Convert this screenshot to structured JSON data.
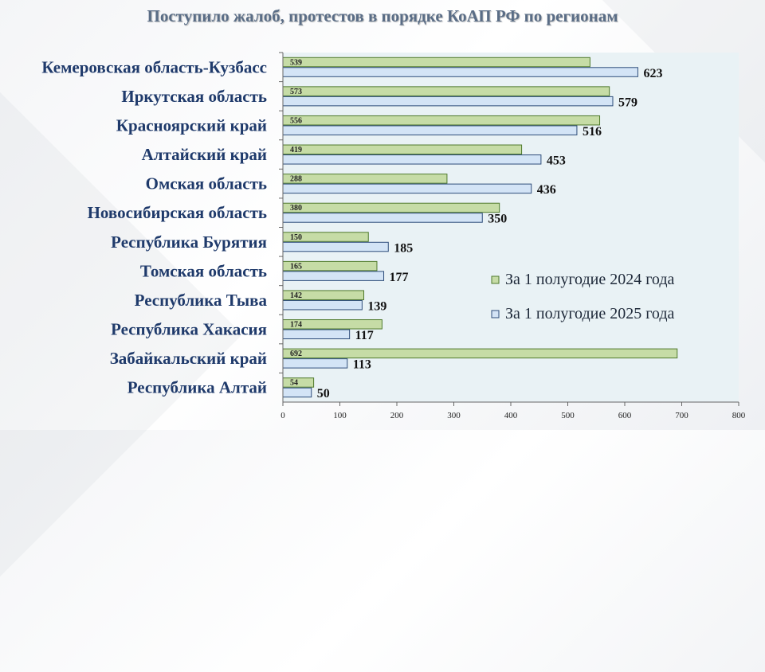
{
  "chart_data": {
    "type": "bar",
    "orientation": "horizontal",
    "title": "Поступило жалоб, протестов в порядке КоАП РФ по регионам",
    "categories": [
      "Кемеровская область-Кузбасс",
      "Иркутская область",
      "Красноярский край",
      "Алтайский край",
      "Омская область",
      "Новосибирская область",
      "Республика Бурятия",
      "Томская область",
      "Республика Тыва",
      "Республика Хакасия",
      "Забайкальский край",
      "Республика Алтай"
    ],
    "series": [
      {
        "name": "За 1 полугодие 2024 года",
        "color": "#c6dca6",
        "stroke": "#4f7a2c",
        "values": [
          539,
          573,
          556,
          419,
          288,
          380,
          150,
          165,
          142,
          174,
          692,
          54
        ]
      },
      {
        "name": "За 1 полугодие 2025 года",
        "color": "#d3e4f6",
        "stroke": "#2e4d7a",
        "values": [
          623,
          579,
          516,
          453,
          436,
          350,
          185,
          177,
          139,
          117,
          113,
          50
        ]
      }
    ],
    "xlim": [
      0,
      800
    ],
    "xticks": [
      0,
      100,
      200,
      300,
      400,
      500,
      600,
      700,
      800
    ],
    "grid": false,
    "legend_position": "right"
  },
  "colors": {
    "title": "#5a6d86",
    "category_text": "#1f3a6b",
    "plot_background": "#e9f2f5"
  }
}
